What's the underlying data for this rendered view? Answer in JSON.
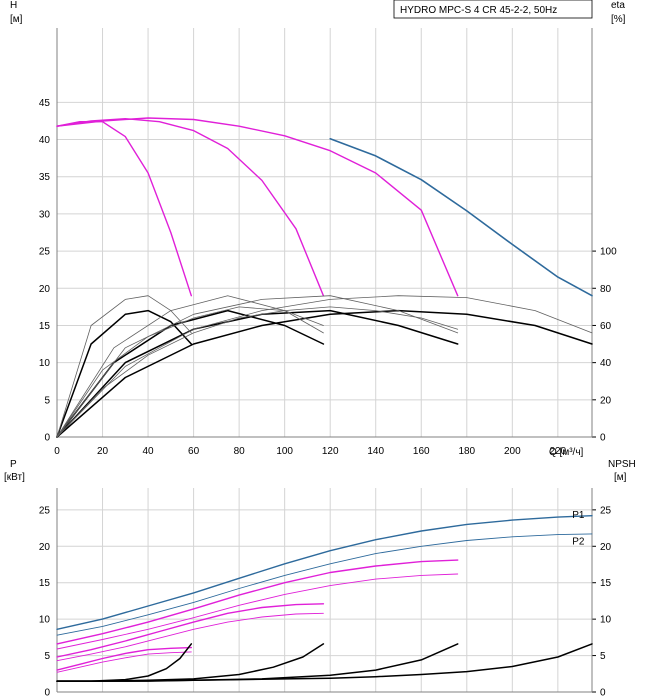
{
  "header": {
    "title": "HYDRO MPC-S 4 CR 45-2-2, 50Hz"
  },
  "colors": {
    "blue": "#2e6a9c",
    "magenta": "#e020d8",
    "black": "#000000",
    "thin": "#606060",
    "grid": "#d4d4d4"
  },
  "chart_data": [
    {
      "type": "line",
      "name": "top",
      "xlabel": "Q [м³/ч]",
      "ylabel_left_1": "H",
      "ylabel_left_2": "[м]",
      "ylabel_right_1": "eta",
      "ylabel_right_2": "[%]",
      "xlim": [
        0,
        235
      ],
      "ylim": [
        0,
        55
      ],
      "y2lim": [
        0,
        220
      ],
      "x_ticks": [
        "0",
        "20",
        "40",
        "60",
        "80",
        "100",
        "120",
        "140",
        "160",
        "180",
        "200",
        "220"
      ],
      "y_ticks": [
        "0",
        "5",
        "10",
        "15",
        "20",
        "25",
        "30",
        "35",
        "40",
        "45"
      ],
      "y2_ticks": [
        "0",
        "20",
        "40",
        "60",
        "80",
        "100"
      ],
      "series": [
        {
          "role": "H",
          "color": "blue",
          "width": 1.6,
          "x": [
            120,
            140,
            160,
            180,
            200,
            220,
            235
          ],
          "y": [
            40.1,
            37.8,
            34.6,
            30.4,
            25.9,
            21.5,
            19
          ]
        },
        {
          "role": "H",
          "color": "magenta",
          "width": 1.4,
          "x": [
            0,
            20,
            40,
            60,
            80,
            100,
            120,
            140,
            160,
            176
          ],
          "y": [
            41.8,
            42.5,
            42.9,
            42.7,
            41.8,
            40.5,
            38.5,
            35.5,
            30.5,
            19
          ]
        },
        {
          "role": "H",
          "color": "magenta",
          "width": 1.4,
          "x": [
            0,
            15,
            30,
            45,
            60,
            75,
            90,
            105,
            117
          ],
          "y": [
            41.8,
            42.5,
            42.8,
            42.4,
            41.2,
            38.8,
            34.5,
            28,
            19
          ]
        },
        {
          "role": "H",
          "color": "magenta",
          "width": 1.4,
          "x": [
            0,
            10,
            20,
            30,
            40,
            50,
            59
          ],
          "y": [
            41.8,
            42.4,
            42.4,
            40.4,
            35.5,
            27.5,
            19
          ]
        },
        {
          "role": "eta",
          "color": "black",
          "width": 1.5,
          "x": [
            0,
            30,
            60,
            90,
            120,
            150,
            180,
            210,
            235
          ],
          "y": [
            0,
            32,
            50,
            60,
            66,
            68,
            66,
            60,
            50
          ]
        },
        {
          "role": "eta",
          "color": "black",
          "width": 1.5,
          "x": [
            0,
            25,
            50,
            75,
            100,
            117
          ],
          "y": [
            0,
            40,
            60,
            68,
            60,
            50
          ]
        },
        {
          "role": "eta",
          "color": "black",
          "width": 1.5,
          "x": [
            0,
            15,
            30,
            40,
            50,
            59
          ],
          "y": [
            0,
            50,
            66,
            68,
            62,
            50
          ]
        },
        {
          "role": "eta",
          "color": "black",
          "width": 1.5,
          "x": [
            0,
            30,
            60,
            90,
            120,
            150,
            176
          ],
          "y": [
            0,
            40,
            58,
            66,
            68,
            60,
            50
          ]
        },
        {
          "role": "eta",
          "color": "thin",
          "width": 0.8,
          "x": [
            0,
            30,
            60,
            90,
            120,
            150,
            180,
            210,
            235
          ],
          "y": [
            0,
            38,
            58,
            68,
            74,
            76,
            75,
            68,
            56
          ]
        },
        {
          "role": "eta",
          "color": "thin",
          "width": 0.8,
          "x": [
            0,
            25,
            50,
            75,
            100,
            117
          ],
          "y": [
            0,
            48,
            68,
            76,
            68,
            56
          ]
        },
        {
          "role": "eta",
          "color": "thin",
          "width": 0.8,
          "x": [
            0,
            15,
            30,
            40,
            50,
            59
          ],
          "y": [
            0,
            60,
            74,
            76,
            68,
            56
          ]
        },
        {
          "role": "eta",
          "color": "thin",
          "width": 0.8,
          "x": [
            0,
            30,
            60,
            90,
            120,
            150,
            176
          ],
          "y": [
            0,
            48,
            66,
            74,
            76,
            68,
            56
          ]
        },
        {
          "role": "eta",
          "color": "thin",
          "width": 0.8,
          "x": [
            0,
            20,
            40,
            60,
            80,
            100,
            117
          ],
          "y": [
            0,
            36,
            54,
            64,
            70,
            68,
            60
          ]
        },
        {
          "role": "eta",
          "color": "thin",
          "width": 0.8,
          "x": [
            0,
            20,
            40,
            60,
            80,
            100,
            120,
            140,
            160,
            176
          ],
          "y": [
            0,
            26,
            44,
            56,
            64,
            68,
            70,
            68,
            64,
            58
          ]
        }
      ]
    },
    {
      "type": "line",
      "name": "bottom",
      "ylabel_left_1": "P",
      "ylabel_left_2": "[кВт]",
      "ylabel_right_1": "NPSH",
      "ylabel_right_2": "[м]",
      "xlim": [
        0,
        235
      ],
      "ylim": [
        0,
        28
      ],
      "y2lim": [
        0,
        28
      ],
      "y_ticks": [
        "0",
        "5",
        "10",
        "15",
        "20",
        "25"
      ],
      "y2_ticks": [
        "0",
        "5",
        "10",
        "15",
        "20",
        "25"
      ],
      "series_labels": [
        {
          "text": "P1",
          "x": 229,
          "y": 24.4,
          "color": "blue"
        },
        {
          "text": "P2",
          "x": 229,
          "y": 20.8,
          "color": "blue"
        }
      ],
      "series": [
        {
          "role": "P1",
          "color": "blue",
          "width": 1.4,
          "x": [
            0,
            20,
            40,
            60,
            80,
            100,
            120,
            140,
            160,
            180,
            200,
            220,
            235
          ],
          "y": [
            8.6,
            10,
            11.8,
            13.6,
            15.6,
            17.6,
            19.4,
            20.9,
            22.1,
            23,
            23.6,
            24,
            24.2
          ]
        },
        {
          "role": "P2",
          "color": "blue",
          "width": 0.9,
          "x": [
            0,
            20,
            40,
            60,
            80,
            100,
            120,
            140,
            160,
            180,
            200,
            220,
            235
          ],
          "y": [
            7.8,
            9,
            10.6,
            12.3,
            14.2,
            16,
            17.6,
            19,
            20,
            20.8,
            21.3,
            21.6,
            21.7
          ]
        },
        {
          "role": "P1",
          "color": "magenta",
          "width": 1.4,
          "x": [
            0,
            20,
            40,
            60,
            80,
            100,
            120,
            140,
            160,
            176
          ],
          "y": [
            6.6,
            8,
            9.6,
            11.4,
            13.3,
            15,
            16.4,
            17.3,
            17.9,
            18.1
          ]
        },
        {
          "role": "P2",
          "color": "magenta",
          "width": 0.9,
          "x": [
            0,
            20,
            40,
            60,
            80,
            100,
            120,
            140,
            160,
            176
          ],
          "y": [
            5.9,
            7.2,
            8.6,
            10.2,
            11.9,
            13.4,
            14.6,
            15.5,
            16,
            16.2
          ]
        },
        {
          "role": "P1",
          "color": "magenta",
          "width": 1.4,
          "x": [
            0,
            15,
            30,
            45,
            60,
            75,
            90,
            105,
            117
          ],
          "y": [
            4.8,
            5.8,
            7,
            8.3,
            9.6,
            10.8,
            11.6,
            12,
            12.1
          ]
        },
        {
          "role": "P2",
          "color": "magenta",
          "width": 0.9,
          "x": [
            0,
            15,
            30,
            45,
            60,
            75,
            90,
            105,
            117
          ],
          "y": [
            4.3,
            5.2,
            6.2,
            7.4,
            8.6,
            9.6,
            10.3,
            10.7,
            10.8
          ]
        },
        {
          "role": "P1",
          "color": "magenta",
          "width": 1.4,
          "x": [
            0,
            10,
            20,
            30,
            40,
            50,
            59
          ],
          "y": [
            3,
            3.8,
            4.6,
            5.3,
            5.8,
            6,
            6.1
          ]
        },
        {
          "role": "P2",
          "color": "magenta",
          "width": 0.9,
          "x": [
            0,
            10,
            20,
            30,
            40,
            50,
            59
          ],
          "y": [
            2.7,
            3.4,
            4.1,
            4.7,
            5.2,
            5.4,
            5.5
          ]
        },
        {
          "role": "NPSH",
          "color": "black",
          "width": 1.5,
          "x": [
            0,
            20,
            40,
            60,
            80,
            100,
            120,
            140,
            160,
            180,
            200,
            220,
            235
          ],
          "y": [
            1.5,
            1.5,
            1.5,
            1.6,
            1.7,
            1.8,
            1.9,
            2.1,
            2.4,
            2.8,
            3.5,
            4.8,
            6.6
          ]
        },
        {
          "role": "NPSH",
          "color": "black",
          "width": 1.5,
          "x": [
            0,
            30,
            60,
            90,
            120,
            140,
            160,
            176
          ],
          "y": [
            1.5,
            1.5,
            1.6,
            1.8,
            2.3,
            3,
            4.4,
            6.6
          ]
        },
        {
          "role": "NPSH",
          "color": "black",
          "width": 1.5,
          "x": [
            0,
            20,
            40,
            60,
            80,
            95,
            108,
            117
          ],
          "y": [
            1.5,
            1.5,
            1.6,
            1.8,
            2.4,
            3.4,
            4.8,
            6.6
          ]
        },
        {
          "role": "NPSH",
          "color": "black",
          "width": 1.5,
          "x": [
            0,
            15,
            30,
            40,
            48,
            54,
            59
          ],
          "y": [
            1.5,
            1.5,
            1.7,
            2.2,
            3.2,
            4.6,
            6.6
          ]
        }
      ]
    }
  ]
}
